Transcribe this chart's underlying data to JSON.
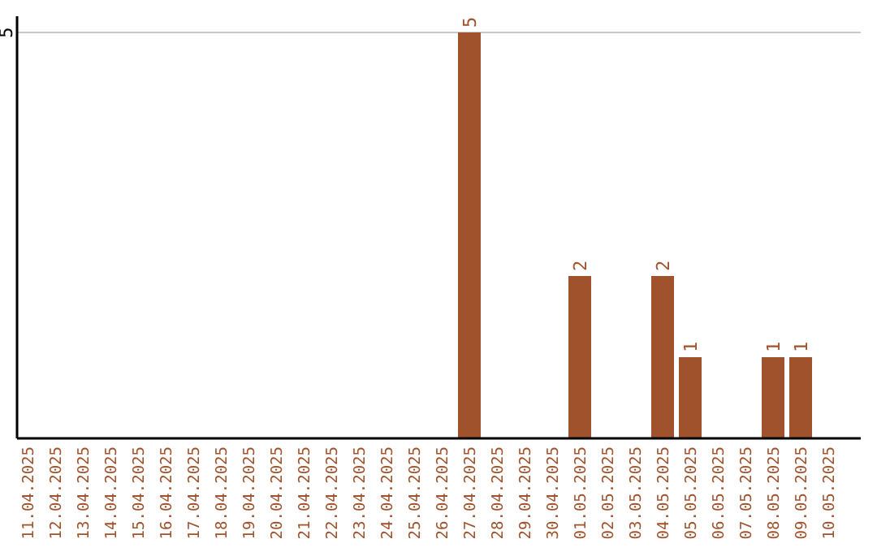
{
  "chart_data": {
    "type": "bar",
    "categories": [
      "11.04.2025",
      "12.04.2025",
      "13.04.2025",
      "14.04.2025",
      "15.04.2025",
      "16.04.2025",
      "17.04.2025",
      "18.04.2025",
      "19.04.2025",
      "20.04.2025",
      "21.04.2025",
      "22.04.2025",
      "23.04.2025",
      "24.04.2025",
      "25.04.2025",
      "26.04.2025",
      "27.04.2025",
      "28.04.2025",
      "29.04.2025",
      "30.04.2025",
      "01.05.2025",
      "02.05.2025",
      "03.05.2025",
      "04.05.2025",
      "05.05.2025",
      "06.05.2025",
      "07.05.2025",
      "08.05.2025",
      "09.05.2025",
      "10.05.2025"
    ],
    "values": [
      null,
      null,
      null,
      null,
      null,
      null,
      null,
      null,
      null,
      null,
      null,
      null,
      null,
      null,
      null,
      null,
      5,
      null,
      null,
      null,
      2,
      null,
      null,
      2,
      1,
      null,
      null,
      1,
      1,
      null
    ],
    "color": "#a0522d",
    "ylim": [
      0,
      5.2
    ],
    "yticks": [
      5
    ],
    "grid": "y",
    "data_labels": true
  }
}
